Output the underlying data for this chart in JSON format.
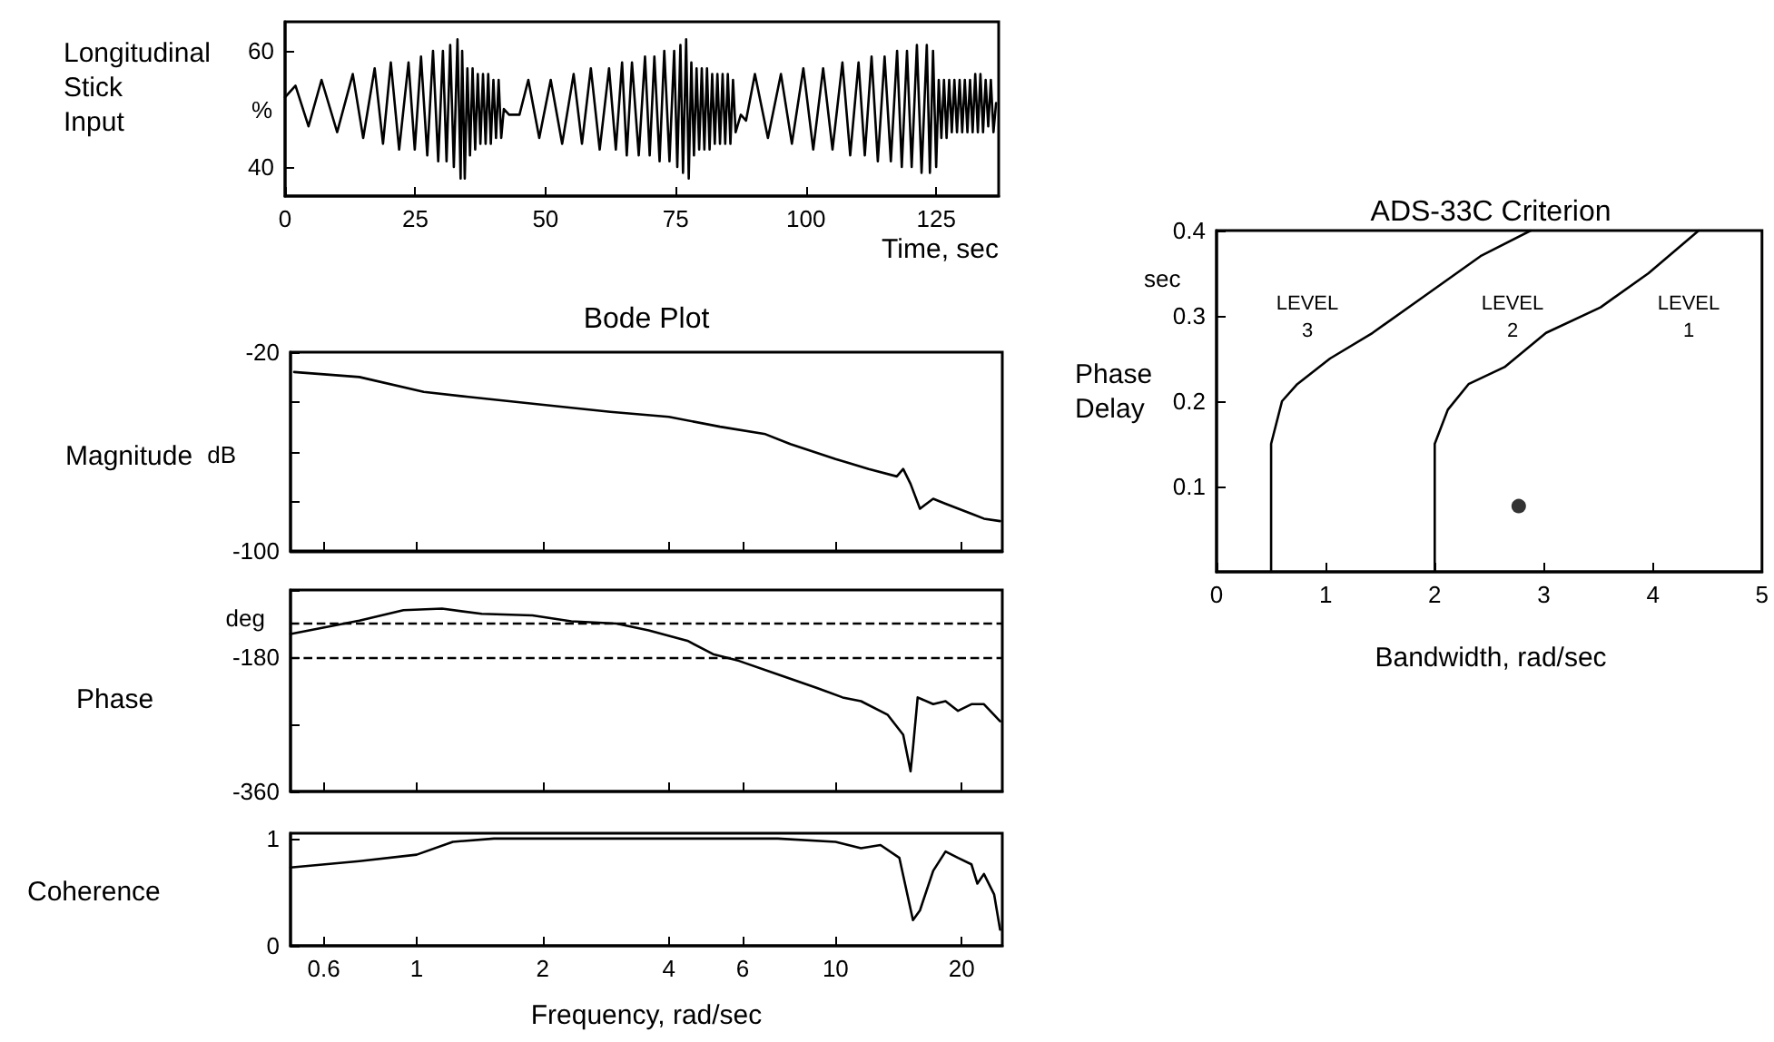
{
  "chart_data": [
    {
      "type": "line",
      "ylabel": "Longitudinal Stick Input",
      "xlabel": "Time, sec",
      "annotations": [
        "%"
      ],
      "marker": "none",
      "line_style": "solid",
      "xlim": [
        0,
        137
      ],
      "ylim": [
        35,
        65
      ],
      "xticks": [
        0,
        25,
        50,
        75,
        100,
        125
      ],
      "yticks": [
        40,
        60
      ],
      "series": [
        {
          "color": "#000000",
          "x": [
            0,
            2,
            4.5,
            7,
            10,
            13,
            15,
            17.2,
            18.8,
            20.3,
            21.9,
            23.7,
            24.9,
            26.1,
            27.3,
            28.4,
            29.4,
            30.3,
            31,
            31.7,
            32.4,
            33.1,
            33.7,
            34,
            34.5,
            35,
            35.5,
            36,
            36.5,
            37,
            37.5,
            38,
            38.5,
            39,
            39.5,
            40,
            40.5,
            41,
            41.5,
            42,
            43,
            45,
            46.7,
            48.8,
            51,
            53.2,
            55.4,
            57,
            58.7,
            60.4,
            62.2,
            63.5,
            64.7,
            65.6,
            66.6,
            67.9,
            69.1,
            70,
            70.9,
            71.9,
            72.8,
            73.8,
            74.7,
            75.3,
            75.9,
            76.4,
            77,
            77.5,
            78,
            78.5,
            79,
            79.5,
            80,
            80.5,
            81,
            81.5,
            82,
            82.5,
            83,
            83.5,
            84,
            84.5,
            85,
            85.5,
            86,
            86.5,
            87.5,
            88.5,
            90.2,
            92.7,
            95.2,
            97.3,
            99.5,
            101.4,
            103.3,
            105.1,
            107,
            108.5,
            110.1,
            111.3,
            112.6,
            113.8,
            115.1,
            116.3,
            117.5,
            118.4,
            119.4,
            120.3,
            121.3,
            122.2,
            123.2,
            123.8,
            124.4,
            125,
            125.5,
            126,
            126.5,
            127,
            127.5,
            128,
            128.5,
            129,
            129.5,
            130,
            130.5,
            131,
            131.5,
            132,
            132.5,
            133,
            133.5,
            134,
            134.5,
            135,
            135.5,
            136,
            136.5
          ],
          "values": [
            52,
            54,
            47,
            55,
            46,
            56,
            45,
            57,
            44,
            58,
            43,
            58,
            43,
            59,
            42,
            60,
            41,
            60,
            41,
            61,
            40,
            62,
            38,
            60,
            38,
            57,
            42,
            57,
            43,
            56,
            44,
            56,
            44,
            56,
            44,
            55,
            45,
            55,
            45,
            50,
            49,
            49,
            55,
            45,
            55,
            44,
            56,
            44,
            57,
            43,
            57,
            43,
            58,
            42,
            58,
            42,
            59,
            42,
            59,
            41,
            60,
            41,
            60,
            40,
            61,
            39,
            62,
            38,
            58,
            42,
            57,
            43,
            57,
            43,
            57,
            43,
            56,
            44,
            56,
            44,
            56,
            44,
            56,
            44,
            55,
            46,
            49,
            48,
            56,
            45,
            56,
            44,
            57,
            43,
            57,
            43,
            58,
            42,
            58,
            42,
            59,
            41,
            59,
            41,
            60,
            40,
            60,
            40,
            61,
            39,
            61,
            39,
            60,
            40,
            55,
            45,
            55,
            45,
            55,
            46,
            55,
            46,
            55,
            46,
            55,
            46,
            55,
            46,
            56,
            46,
            56,
            46,
            55,
            47,
            55,
            46,
            51
          ]
        }
      ]
    },
    {
      "type": "line",
      "title": "Bode Plot",
      "ylabel": "Magnitude",
      "annotations": [
        "dB"
      ],
      "log": "x",
      "marker": "none",
      "line_style": "solid",
      "tick_labels": "y",
      "xlim": [
        0.5,
        25
      ],
      "ylim": [
        -100,
        -20
      ],
      "xticks": [
        0.6,
        1,
        2,
        4,
        6,
        10,
        20
      ],
      "yticks": [
        -100,
        {
          "value": -80,
          "label": null
        },
        {
          "value": -60,
          "label": null
        },
        {
          "value": -40,
          "label": null
        },
        -20
      ],
      "series": [
        {
          "color": "#000000",
          "x": [
            0.51,
            0.73,
            1.04,
            1.33,
            1.96,
            2.9,
            4.0,
            5.3,
            6.8,
            7.8,
            10,
            12,
            14,
            14.5,
            15.1,
            15.9,
            17.1,
            18.3,
            21.1,
            22.6,
            24.7
          ],
          "values": [
            -28,
            -30,
            -36,
            -38,
            -41,
            -44,
            -46,
            -50,
            -53,
            -57,
            -63,
            -67,
            -70,
            -67,
            -73,
            -83,
            -79,
            -81,
            -85,
            -87,
            -88
          ]
        }
      ]
    },
    {
      "type": "line",
      "ylabel": "Phase",
      "annotations": [
        "deg"
      ],
      "log": "x",
      "marker": "none",
      "line_style": "solid",
      "tick_labels": "y",
      "xlim": [
        0.5,
        25
      ],
      "ylim": [
        -360,
        -90
      ],
      "xticks": [
        0.6,
        1,
        2,
        4,
        6,
        10,
        20
      ],
      "yticks": [
        -360,
        {
          "value": -270,
          "label": null
        },
        -180,
        {
          "value": -90,
          "label": null
        }
      ],
      "ref_lines": [
        {
          "axis": "y",
          "value": -135,
          "color": "#000000",
          "line_style": "dashed"
        },
        {
          "axis": "y",
          "value": -180,
          "color": "#000000",
          "line_style": "dashed"
        }
      ],
      "series": [
        {
          "color": "#000000",
          "x": [
            0.5,
            0.73,
            0.93,
            1.15,
            1.43,
            1.89,
            2.34,
            3.0,
            3.58,
            4.43,
            5.1,
            5.88,
            7.28,
            9.0,
            10.4,
            11.5,
            13.3,
            14.5,
            15.1,
            15.3,
            15.7,
            17.1,
            18.3,
            19.6,
            21.1,
            22.6,
            24.7
          ],
          "values": [
            -149,
            -131,
            -117,
            -115,
            -122,
            -124,
            -132,
            -135,
            -144,
            -158,
            -176,
            -185,
            -203,
            -221,
            -234,
            -239,
            -257,
            -284,
            -333,
            -302,
            -234,
            -243,
            -239,
            -252,
            -243,
            -243,
            -266
          ]
        }
      ]
    },
    {
      "type": "line",
      "ylabel": "Coherence",
      "xlabel": "Frequency, rad/sec",
      "log": "x",
      "marker": "none",
      "line_style": "solid",
      "xlim": [
        0.5,
        25
      ],
      "ylim": [
        0,
        1.05
      ],
      "xticks": [
        0.6,
        1,
        2,
        4,
        6,
        10,
        20
      ],
      "yticks": [
        0,
        1
      ],
      "series": [
        {
          "color": "#000000",
          "x": [
            0.5,
            0.73,
            1.0,
            1.22,
            1.53,
            3.58,
            7.28,
            10,
            11.5,
            12.8,
            14.2,
            15.3,
            15.9,
            17.1,
            18.3,
            19.6,
            21.1,
            21.8,
            22.6,
            23.9,
            24.7
          ],
          "values": [
            0.73,
            0.79,
            0.85,
            0.97,
            1.0,
            1.0,
            1.0,
            0.97,
            0.91,
            0.94,
            0.82,
            0.24,
            0.33,
            0.7,
            0.88,
            0.82,
            0.76,
            0.58,
            0.67,
            0.48,
            0.15
          ]
        }
      ]
    },
    {
      "type": "line",
      "title": "ADS-33C Criterion",
      "xlabel": "Bandwidth, rad/sec",
      "ylabel": "Phase Delay",
      "marker": "none",
      "line_style": "solid",
      "xlim": [
        0,
        5
      ],
      "ylim": [
        0,
        0.4
      ],
      "xticks": [
        0,
        1,
        2,
        3,
        4,
        5
      ],
      "yticks": [
        0.1,
        0.2,
        0.3,
        0.4
      ],
      "annotations": [
        "sec",
        "LEVEL 3",
        "LEVEL 2",
        "LEVEL 1"
      ],
      "series": [
        {
          "color": "#000000",
          "x": [
            0.5,
            0.5,
            0.6,
            0.74,
            1.04,
            1.43,
            1.87,
            2.42,
            2.88
          ],
          "values": [
            0,
            0.15,
            0.2,
            0.22,
            0.25,
            0.28,
            0.32,
            0.37,
            0.4
          ]
        },
        {
          "color": "#000000",
          "x": [
            2.0,
            2.0,
            2.12,
            2.31,
            2.64,
            3.02,
            3.52,
            3.96,
            4.42
          ],
          "values": [
            0,
            0.15,
            0.19,
            0.22,
            0.24,
            0.28,
            0.31,
            0.35,
            0.4
          ]
        },
        {
          "type": "scatter",
          "marker": "circle",
          "color": "#000000",
          "x": [
            2.77
          ],
          "values": [
            0.077
          ]
        }
      ]
    }
  ]
}
